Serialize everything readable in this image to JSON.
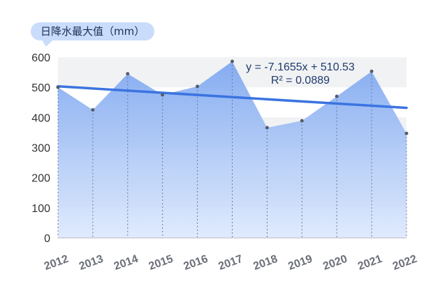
{
  "chart_data": {
    "type": "area",
    "title": "日降水最大值（mm）",
    "xlabel": "",
    "ylabel": "",
    "categories": [
      "2012",
      "2013",
      "2014",
      "2015",
      "2016",
      "2017",
      "2018",
      "2019",
      "2020",
      "2021",
      "2022"
    ],
    "series": [
      {
        "values": [
          500,
          425,
          545,
          475,
          503,
          586,
          366,
          389,
          470,
          553,
          347
        ]
      }
    ],
    "yticks": [
      "0",
      "100",
      "200",
      "300",
      "400",
      "500",
      "600"
    ],
    "ylim": [
      0,
      600
    ],
    "trendline": {
      "type": "linear",
      "slope": -7.1655,
      "intercept": 510.53,
      "equation": "y = -7.1655x + 510.53",
      "r2": "R² = 0.0889"
    },
    "grid": "horizontal bands",
    "colors": {
      "area": "#7fa8f0",
      "trend": "#3b74e0",
      "title_bg": "#c9dcfb",
      "label": "#1f3a6b"
    }
  }
}
